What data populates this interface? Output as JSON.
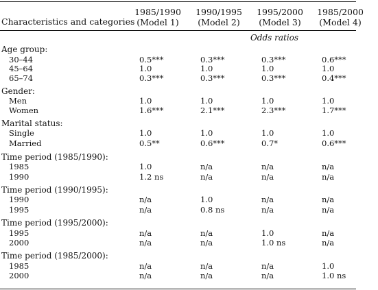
{
  "header": {
    "stub": "Characteristics and categories",
    "columns": [
      {
        "line1": "1985/1990",
        "line2": "(Model 1)"
      },
      {
        "line1": "1990/1995",
        "line2": "(Model 2)"
      },
      {
        "line1": "1995/2000",
        "line2": "(Model 3)"
      },
      {
        "line1": "1985/2000",
        "line2": "(Model 4)"
      }
    ],
    "subheader": "Odds ratios"
  },
  "rows": [
    {
      "type": "group",
      "label": "Age group:"
    },
    {
      "type": "data",
      "label": "30–44",
      "values": [
        "0.5***",
        "0.3***",
        "0.3***",
        "0.6***"
      ]
    },
    {
      "type": "data",
      "label": "45–64",
      "values": [
        "1.0",
        "1.0",
        "1.0",
        "1.0"
      ]
    },
    {
      "type": "data",
      "label": "65–74",
      "values": [
        "0.3***",
        "0.3***",
        "0.3***",
        "0.4***"
      ]
    },
    {
      "type": "group",
      "label": "Gender:"
    },
    {
      "type": "data",
      "label": "Men",
      "values": [
        "1.0",
        "1.0",
        "1.0",
        "1.0"
      ]
    },
    {
      "type": "data",
      "label": "Women",
      "values": [
        "1.6***",
        "2.1***",
        "2.3***",
        "1.7***"
      ]
    },
    {
      "type": "group",
      "label": "Marital status:"
    },
    {
      "type": "data",
      "label": "Single",
      "values": [
        "1.0",
        "1.0",
        "1.0",
        "1.0"
      ]
    },
    {
      "type": "data",
      "label": "Married",
      "values": [
        "0.5**",
        "0.6***",
        "0.7*",
        "0.6***"
      ]
    },
    {
      "type": "group",
      "label": "Time period (1985/1990):"
    },
    {
      "type": "data",
      "label": "1985",
      "values": [
        "1.0",
        "n/a",
        "n/a",
        "n/a"
      ]
    },
    {
      "type": "data",
      "label": "1990",
      "values": [
        "1.2 ns",
        "n/a",
        "n/a",
        "n/a"
      ]
    },
    {
      "type": "group",
      "label": "Time period (1990/1995):"
    },
    {
      "type": "data",
      "label": "1990",
      "values": [
        "n/a",
        "1.0",
        "n/a",
        "n/a"
      ]
    },
    {
      "type": "data",
      "label": "1995",
      "values": [
        "n/a",
        "0.8 ns",
        "n/a",
        "n/a"
      ]
    },
    {
      "type": "group",
      "label": "Time period (1995/2000):"
    },
    {
      "type": "data",
      "label": "1995",
      "values": [
        "n/a",
        "n/a",
        "1.0",
        "n/a"
      ]
    },
    {
      "type": "data",
      "label": "2000",
      "values": [
        "n/a",
        "n/a",
        "1.0 ns",
        "n/a"
      ]
    },
    {
      "type": "group",
      "label": "Time period (1985/2000):"
    },
    {
      "type": "data",
      "label": "1985",
      "values": [
        "n/a",
        "n/a",
        "n/a",
        "1.0"
      ]
    },
    {
      "type": "data",
      "label": "2000",
      "values": [
        "n/a",
        "n/a",
        "n/a",
        "1.0 ns"
      ]
    }
  ]
}
